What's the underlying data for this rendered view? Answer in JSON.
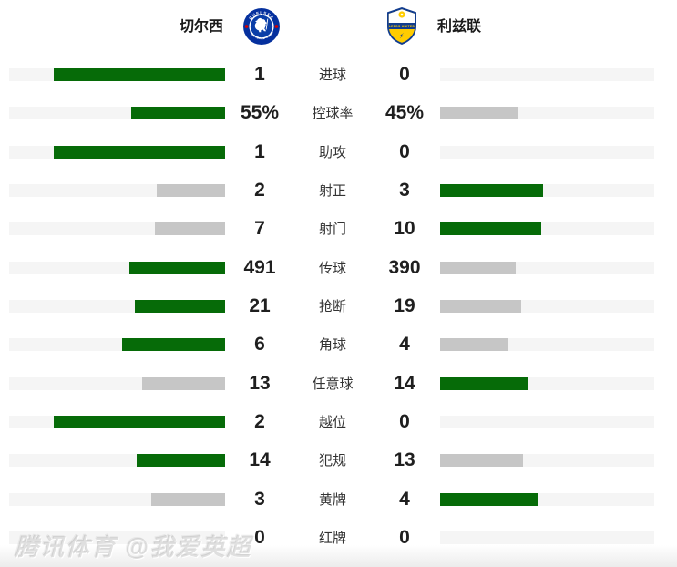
{
  "header": {
    "home_team": "切尔西",
    "away_team": "利兹联",
    "home_badge_icon": "chelsea-crest",
    "away_badge_icon": "leeds-crest"
  },
  "colors": {
    "win_bar": "#066b08",
    "lose_bar": "#c6c6c6",
    "track": "#f5f5f5",
    "value_text": "#1f1f1f",
    "label_text": "#333333",
    "chelsea_blue": "#0a3ea8",
    "leeds_yellow": "#ffcc00",
    "leeds_blue": "#123d8f"
  },
  "stats": [
    {
      "label": "进球",
      "home": "1",
      "away": "0"
    },
    {
      "label": "控球率",
      "home": "55%",
      "away": "45%"
    },
    {
      "label": "助攻",
      "home": "1",
      "away": "0"
    },
    {
      "label": "射正",
      "home": "2",
      "away": "3"
    },
    {
      "label": "射门",
      "home": "7",
      "away": "10"
    },
    {
      "label": "传球",
      "home": "491",
      "away": "390"
    },
    {
      "label": "抢断",
      "home": "21",
      "away": "19"
    },
    {
      "label": "角球",
      "home": "6",
      "away": "4"
    },
    {
      "label": "任意球",
      "home": "13",
      "away": "14"
    },
    {
      "label": "越位",
      "home": "2",
      "away": "0"
    },
    {
      "label": "犯规",
      "home": "14",
      "away": "13"
    },
    {
      "label": "黄牌",
      "home": "3",
      "away": "4"
    },
    {
      "label": "红牌",
      "home": "0",
      "away": "0"
    }
  ],
  "chart_data": {
    "type": "bar",
    "orientation": "horizontal-diverging",
    "legend_position": "top",
    "grid": false,
    "categories": [
      "进球",
      "控球率",
      "助攻",
      "射正",
      "射门",
      "传球",
      "抢断",
      "角球",
      "任意球",
      "越位",
      "犯规",
      "黄牌",
      "红牌"
    ],
    "series": [
      {
        "name": "切尔西",
        "values": [
          1,
          55,
          1,
          2,
          7,
          491,
          21,
          6,
          13,
          2,
          14,
          3,
          0
        ]
      },
      {
        "name": "利兹联",
        "values": [
          0,
          45,
          0,
          3,
          10,
          390,
          19,
          4,
          14,
          0,
          13,
          4,
          0
        ]
      }
    ],
    "bar_rule": "higher value rendered green, lower gray, zero empty; bar length = value/(home+away) of row, max 80% of track"
  },
  "watermark": "腾讯体育 @我爱英超"
}
